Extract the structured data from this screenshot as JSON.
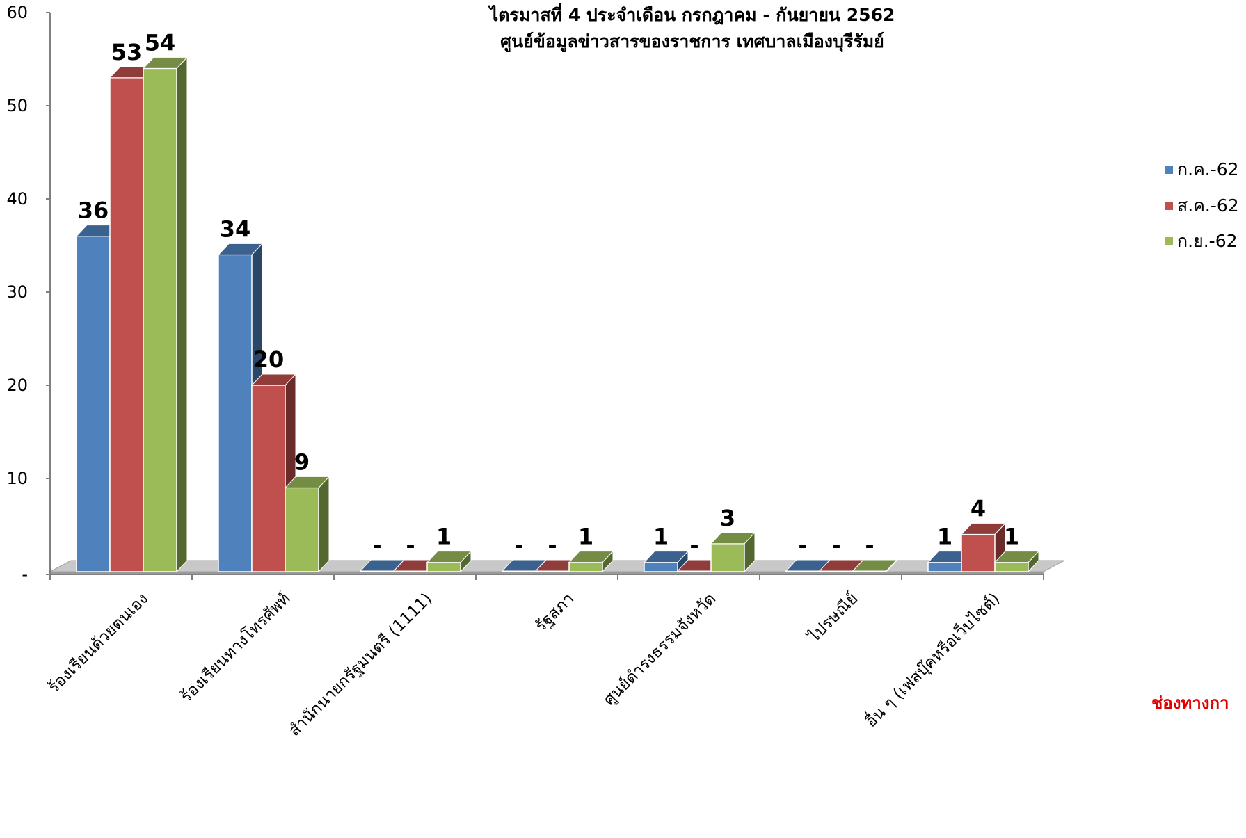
{
  "chart_data": {
    "type": "bar",
    "title_lines": [
      "ไตรมาสที่  4 ประจำเดือน กรกฎาคม - กันยายน 2562",
      "ศูนย์ข้อมูลข่าวสารของราชการ เทศบาลเมืองบุรีรัมย์"
    ],
    "xlabel": "ช่องทางกา",
    "ylabel": "",
    "ylim": [
      0,
      60
    ],
    "yticks": [
      "-",
      "10",
      "20",
      "30",
      "40",
      "50",
      "60"
    ],
    "grid": false,
    "legend_position": "right",
    "style": "3d-clustered-column",
    "categories": [
      "ร้องเรียนด้วยตนเอง",
      "ร้องเรียนทางโทรศัพท์",
      "สำนักนายกรัฐมนตรี (1111)",
      "รัฐสภา",
      "ศูนย์ดำรงธรรมจังหวัด",
      "ไปรษณีย์",
      "อื่น ๆ (เฟสบุ๊คหรือเว็บไซต์)"
    ],
    "series": [
      {
        "name": "ก.ค.-62",
        "color": "#4f81bd",
        "values": [
          36,
          34,
          0,
          0,
          1,
          0,
          1
        ],
        "labels": [
          "36",
          "34",
          "-",
          "-",
          "1",
          "-",
          "1"
        ]
      },
      {
        "name": "ส.ค.-62",
        "color": "#c0504d",
        "values": [
          53,
          20,
          0,
          0,
          0,
          0,
          4
        ],
        "labels": [
          "53",
          "20",
          "-",
          "-",
          "-",
          "-",
          "4"
        ]
      },
      {
        "name": "ก.ย.-62",
        "color": "#9bbb59",
        "values": [
          54,
          9,
          1,
          1,
          3,
          0,
          1
        ],
        "labels": [
          "54",
          "9",
          "1",
          "1",
          "3",
          "-",
          "1"
        ]
      }
    ]
  }
}
